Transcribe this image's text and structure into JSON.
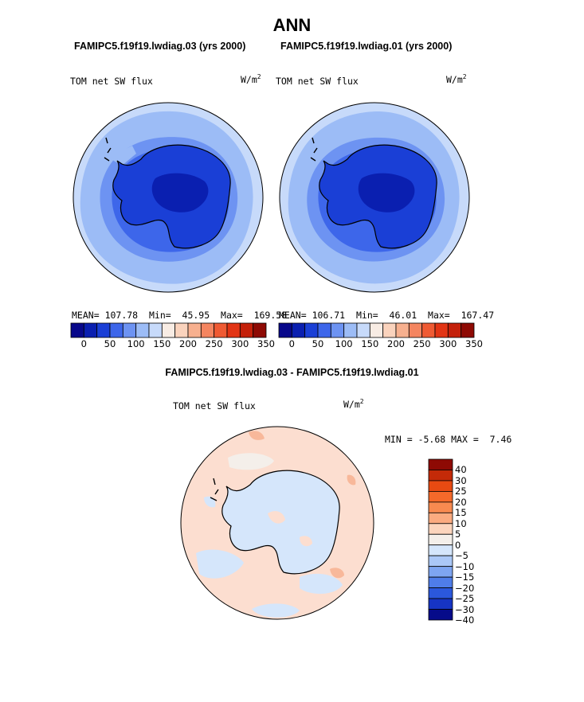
{
  "page_title": "ANN",
  "panel_left": {
    "case_label": "FAMIPC5.f19f19.lwdiag.03 (yrs 2000)",
    "variable": "TOM net SW flux",
    "units": "W/m",
    "units_exp": "2",
    "stats": {
      "mean_label": "MEAN=",
      "mean": "107.78",
      "min_label": "Min=",
      "min": "45.95",
      "max_label": "Max=",
      "max": "169.58"
    },
    "colorbar_ticks": [
      "0",
      "50",
      "100",
      "150",
      "200",
      "250",
      "300",
      "350"
    ]
  },
  "panel_right": {
    "case_label": "FAMIPC5.f19f19.lwdiag.01 (yrs 2000)",
    "variable": "TOM net SW flux",
    "units": "W/m",
    "units_exp": "2",
    "stats": {
      "mean_label": "MEAN=",
      "mean": "106.71",
      "min_label": "Min=",
      "min": "46.01",
      "max_label": "Max=",
      "max": "167.47"
    },
    "colorbar_ticks": [
      "0",
      "50",
      "100",
      "150",
      "200",
      "250",
      "300",
      "350"
    ]
  },
  "diff_panel": {
    "title": "FAMIPC5.f19f19.lwdiag.03 - FAMIPC5.f19f19.lwdiag.01",
    "variable": "TOM net SW flux",
    "units": "W/m",
    "units_exp": "2",
    "min_label": "MIN =",
    "min": "-5.68",
    "max_label": "MAX =",
    "max": "7.46",
    "colorbar_labels": [
      "40",
      "30",
      "25",
      "20",
      "15",
      "10",
      "5",
      "0",
      "−5",
      "−10",
      "−15",
      "−20",
      "−25",
      "−30",
      "−40"
    ]
  },
  "colors": {
    "seq_palette": [
      "#08088a",
      "#0a1fb0",
      "#1a3fd6",
      "#3d66ea",
      "#6d93f2",
      "#9cbcf6",
      "#c7dafa",
      "#f8ece4",
      "#fad3bd",
      "#f7b08f",
      "#f48560",
      "#ef5a33",
      "#e23414",
      "#c4200a",
      "#8e0a04"
    ],
    "diff_palette": [
      "#8e0a04",
      "#c42a08",
      "#e84a12",
      "#f5692a",
      "#f88a50",
      "#fbab80",
      "#fcd5bd",
      "#f4efea",
      "#d5e6fb",
      "#abc8f7",
      "#7ea5f1",
      "#4f7de9",
      "#2b58dc",
      "#1634c4",
      "#060b8a"
    ]
  }
}
